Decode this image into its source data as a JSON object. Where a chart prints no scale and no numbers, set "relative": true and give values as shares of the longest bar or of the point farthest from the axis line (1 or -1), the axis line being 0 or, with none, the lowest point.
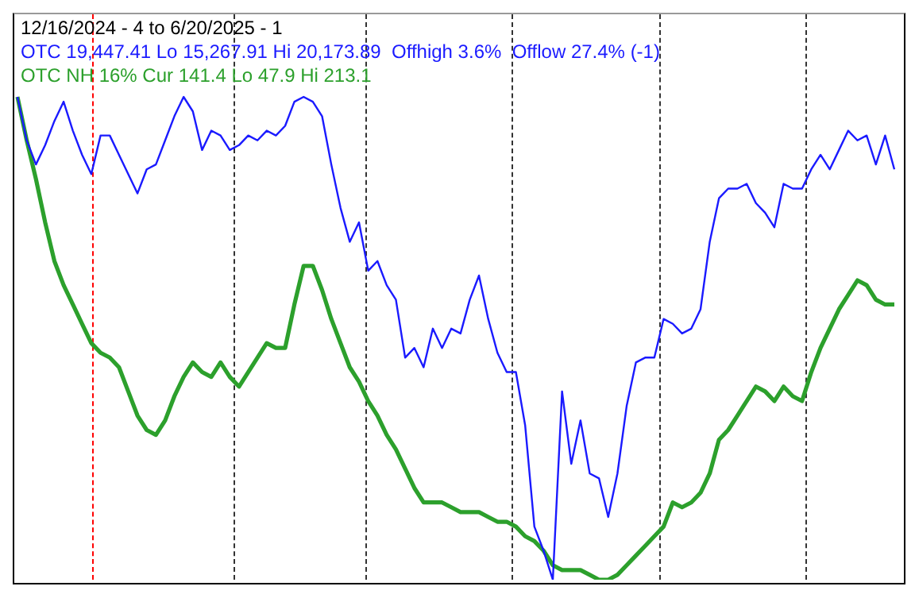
{
  "chart_data": {
    "type": "line",
    "title": "12/16/2024 - 4 to 6/20/2025 - 1",
    "relative": true,
    "marker": "none",
    "line_style": "solid",
    "categories": [
      null,
      null,
      null,
      null,
      null,
      null,
      null,
      null,
      null,
      null,
      null,
      null,
      null,
      null,
      null,
      null,
      null,
      null,
      null,
      null,
      null,
      null,
      null,
      null,
      null,
      null,
      null,
      null,
      null,
      null,
      null,
      null,
      null,
      null,
      null,
      null,
      null,
      null,
      null,
      null,
      null,
      null,
      null,
      null,
      null,
      null,
      null,
      null,
      null,
      null,
      null,
      null,
      null,
      null,
      null,
      null,
      null,
      null,
      null,
      null,
      null,
      null,
      null,
      null,
      null,
      null,
      null,
      null,
      null,
      null,
      null,
      null,
      null,
      null,
      null,
      null,
      null,
      null,
      null,
      null,
      null,
      null,
      null,
      null,
      null,
      null,
      null,
      null,
      null,
      null,
      null,
      null,
      null,
      null,
      null,
      null
    ],
    "series": [
      {
        "name": "OTC 19,447.41 Lo 15,267.91 Hi 20,173.89  Offhigh 3.6%  Offlow 27.4% (-1)",
        "color": "#1a1aff",
        "values": [
          1.0,
          0.91,
          0.86,
          0.9,
          0.95,
          0.99,
          0.93,
          0.88,
          0.84,
          0.92,
          0.92,
          0.88,
          0.84,
          0.8,
          0.85,
          0.86,
          0.91,
          0.96,
          1.0,
          0.97,
          0.89,
          0.93,
          0.92,
          0.89,
          0.9,
          0.92,
          0.91,
          0.93,
          0.92,
          0.94,
          0.99,
          1.0,
          0.99,
          0.96,
          0.86,
          0.77,
          0.7,
          0.74,
          0.64,
          0.66,
          0.61,
          0.58,
          0.46,
          0.48,
          0.44,
          0.52,
          0.48,
          0.52,
          0.51,
          0.58,
          0.63,
          0.54,
          0.47,
          0.43,
          0.43,
          0.32,
          0.11,
          0.06,
          0.0,
          0.39,
          0.24,
          0.33,
          0.22,
          0.21,
          0.13,
          0.22,
          0.36,
          0.45,
          0.46,
          0.46,
          0.54,
          0.53,
          0.51,
          0.52,
          0.56,
          0.7,
          0.79,
          0.81,
          0.81,
          0.82,
          0.78,
          0.76,
          0.73,
          0.82,
          0.81,
          0.81,
          0.85,
          0.88,
          0.85,
          0.89,
          0.93,
          0.91,
          0.92,
          0.86,
          0.92,
          0.85
        ]
      },
      {
        "name": "OTC NH 16% Cur 141.4 Lo 47.9 Hi 213.1",
        "color": "#2ca02c",
        "values": [
          1.0,
          0.91,
          0.83,
          0.74,
          0.66,
          0.61,
          0.57,
          0.53,
          0.49,
          0.47,
          0.46,
          0.44,
          0.39,
          0.34,
          0.31,
          0.3,
          0.33,
          0.38,
          0.42,
          0.45,
          0.43,
          0.42,
          0.45,
          0.42,
          0.4,
          0.43,
          0.46,
          0.49,
          0.48,
          0.48,
          0.57,
          0.65,
          0.65,
          0.6,
          0.54,
          0.49,
          0.44,
          0.41,
          0.37,
          0.34,
          0.3,
          0.27,
          0.23,
          0.19,
          0.16,
          0.16,
          0.16,
          0.15,
          0.14,
          0.14,
          0.14,
          0.13,
          0.12,
          0.12,
          0.11,
          0.09,
          0.08,
          0.06,
          0.03,
          0.02,
          0.02,
          0.02,
          0.01,
          0.0,
          0.0,
          0.01,
          0.03,
          0.05,
          0.07,
          0.09,
          0.11,
          0.16,
          0.15,
          0.16,
          0.18,
          0.22,
          0.29,
          0.31,
          0.34,
          0.37,
          0.4,
          0.39,
          0.37,
          0.4,
          0.38,
          0.37,
          0.43,
          0.48,
          0.52,
          0.56,
          0.59,
          0.62,
          0.61,
          0.58,
          0.57,
          0.57
        ]
      }
    ]
  }
}
